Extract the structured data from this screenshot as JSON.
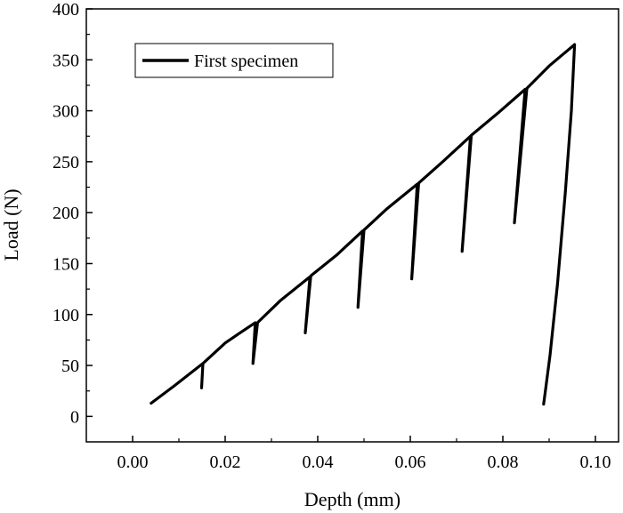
{
  "chart_data": {
    "type": "line",
    "xlabel": "Depth (mm)",
    "ylabel": "Load (N)",
    "xlim": [
      -0.01,
      0.105
    ],
    "ylim": [
      -25,
      400
    ],
    "xticks": [
      0.0,
      0.02,
      0.04,
      0.06,
      0.08,
      0.1
    ],
    "xtick_labels": [
      "0.00",
      "0.02",
      "0.04",
      "0.06",
      "0.08",
      "0.10"
    ],
    "yticks": [
      0,
      50,
      100,
      150,
      200,
      250,
      300,
      350,
      400
    ],
    "ytick_labels": [
      "0",
      "50",
      "100",
      "150",
      "200",
      "250",
      "300",
      "350",
      "400"
    ],
    "grid": false,
    "legend_position": "top-left",
    "series": [
      {
        "name": "First specimen",
        "color": "#000000",
        "x": [
          0.004,
          0.009,
          0.0152,
          0.0149,
          0.0152,
          0.02,
          0.0232,
          0.0265,
          0.026,
          0.027,
          0.032,
          0.0383,
          0.0373,
          0.0385,
          0.044,
          0.0497,
          0.0487,
          0.05,
          0.055,
          0.0615,
          0.0603,
          0.0618,
          0.067,
          0.073,
          0.0712,
          0.0732,
          0.079,
          0.0848,
          0.0825,
          0.0852,
          0.09,
          0.0955,
          0.0948,
          0.0935,
          0.0918,
          0.0902,
          0.0892,
          0.0888
        ],
        "y": [
          13,
          30,
          52,
          28,
          52,
          72,
          82,
          92,
          52,
          92,
          114,
          137,
          82,
          138,
          158,
          182,
          107,
          183,
          204,
          228,
          135,
          229,
          250,
          275,
          162,
          276,
          298,
          321,
          190,
          322,
          344,
          365,
          300,
          220,
          130,
          60,
          25,
          12
        ]
      }
    ]
  }
}
